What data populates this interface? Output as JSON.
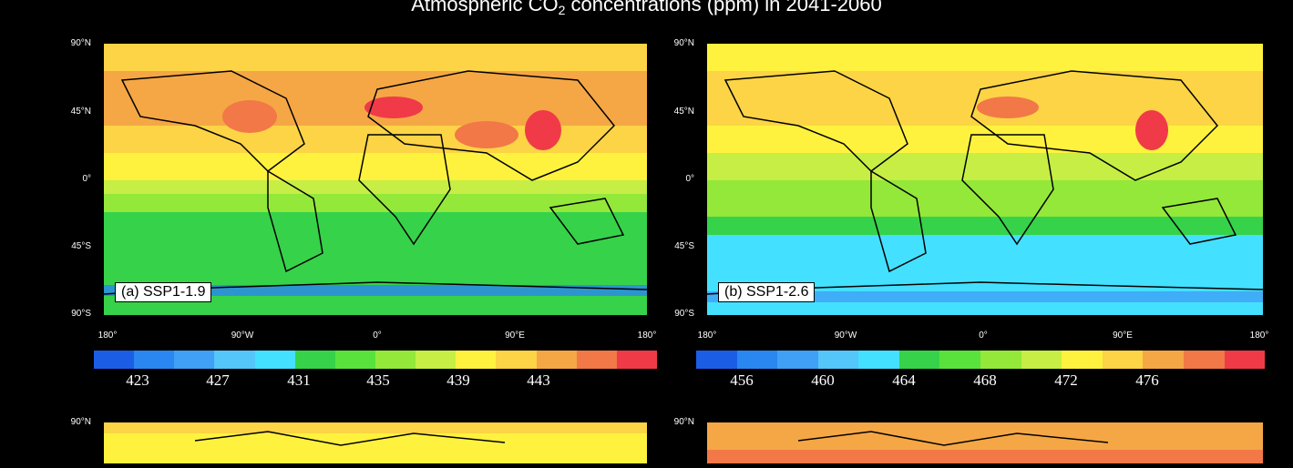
{
  "figure": {
    "title_prefix": "Atmospheric CO",
    "title_sub": "2",
    "title_suffix": " concentrations (ppm) in 2041-2060"
  },
  "axes": {
    "lat_labels": [
      "90°N",
      "45°N",
      "0°",
      "45°S",
      "90°S"
    ],
    "lon_labels": [
      "180°",
      "90°W",
      "0°",
      "90°E",
      "180°"
    ]
  },
  "palette": [
    "#1c5de6",
    "#2a86f0",
    "#3fa0f6",
    "#55c6fa",
    "#44e0ff",
    "#36d24a",
    "#5ae23c",
    "#93e83a",
    "#c6ee44",
    "#fff23e",
    "#fcd445",
    "#f5a745",
    "#f27848",
    "#f03a48"
  ],
  "panels": [
    {
      "label": "(a) SSP1-1.9",
      "colorbar_ticks": [
        "423",
        "427",
        "431",
        "435",
        "439",
        "443"
      ]
    },
    {
      "label": "(b) SSP1-2.6",
      "colorbar_ticks": [
        "456",
        "460",
        "464",
        "468",
        "472",
        "476"
      ]
    }
  ],
  "lower_panels": {
    "lat_label": "90°N"
  }
}
